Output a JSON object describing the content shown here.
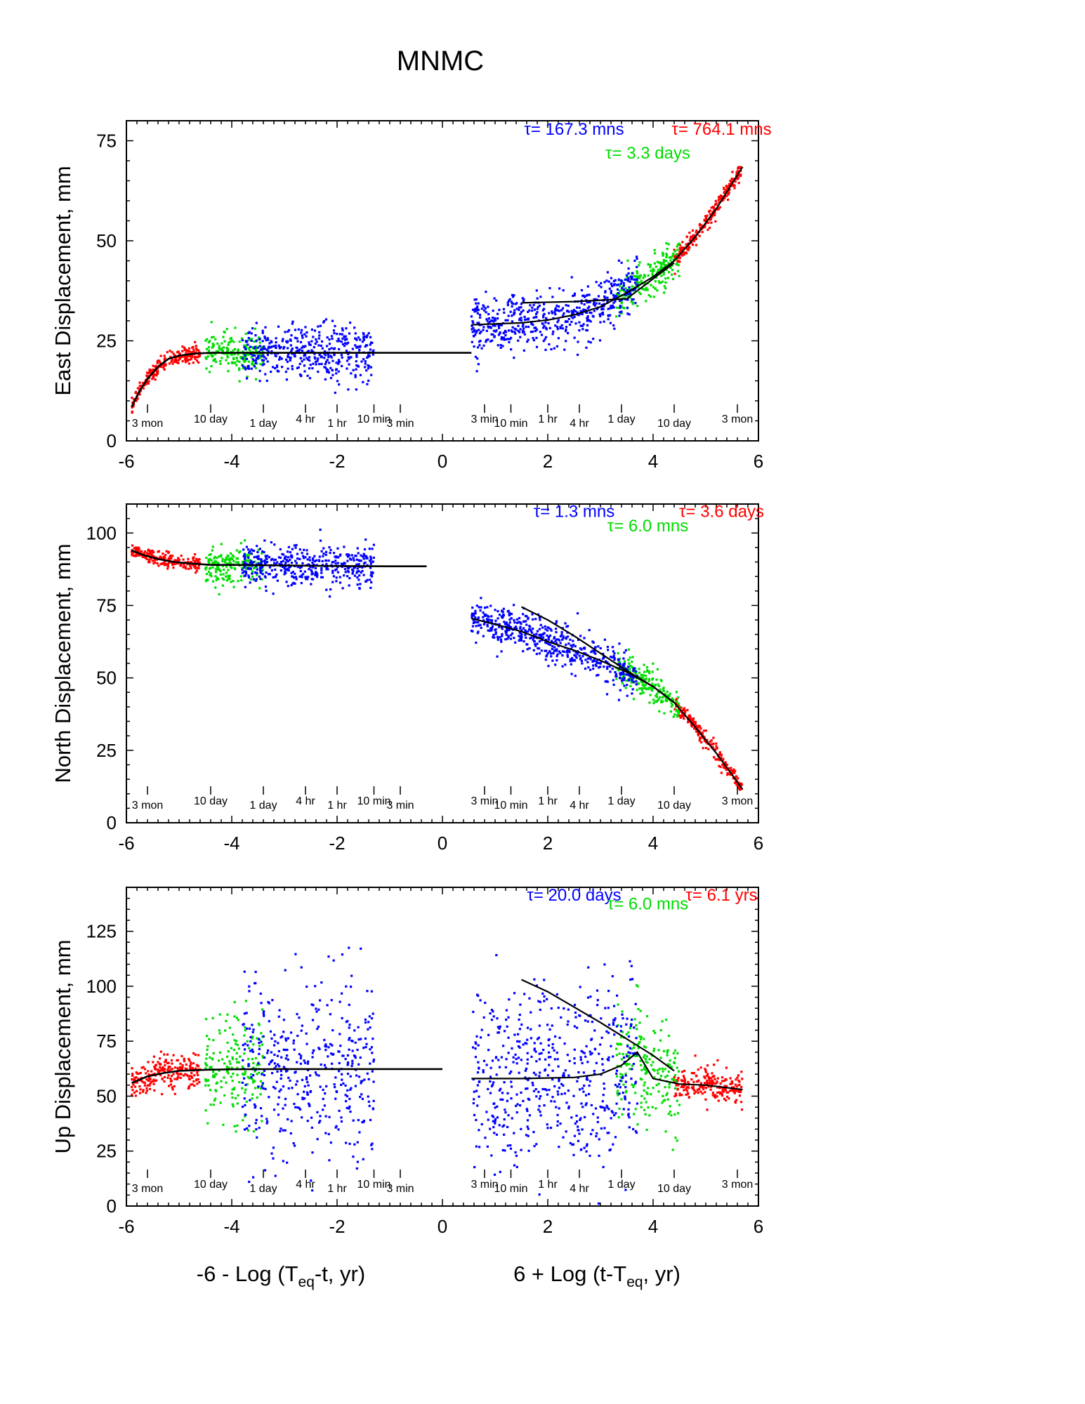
{
  "figure_title": "MNMC",
  "chart_data": [
    {
      "type": "scatter",
      "ylabel": "East Displacement, mm",
      "xlabel": "",
      "xlim": [
        -6,
        6
      ],
      "ylim": [
        0,
        80
      ],
      "x_ticks": [
        -6,
        -4,
        -2,
        0,
        2,
        4,
        6
      ],
      "y_ticks": [
        0,
        25,
        50,
        75
      ],
      "grid": false,
      "time_labels": [
        {
          "x": -5.6,
          "label": "3 mon"
        },
        {
          "x": -4.4,
          "label": "10 day"
        },
        {
          "x": -3.4,
          "label": "1 day"
        },
        {
          "x": -2.6,
          "label": "4 hr"
        },
        {
          "x": -2.0,
          "label": "1 hr"
        },
        {
          "x": -1.3,
          "label": "10 min"
        },
        {
          "x": -0.8,
          "label": "3 min"
        },
        {
          "x": 0.8,
          "label": "3 min"
        },
        {
          "x": 1.3,
          "label": "10 min"
        },
        {
          "x": 2.0,
          "label": "1 hr"
        },
        {
          "x": 2.6,
          "label": "4 hr"
        },
        {
          "x": 3.4,
          "label": "1 day"
        },
        {
          "x": 4.4,
          "label": "10 day"
        },
        {
          "x": 5.6,
          "label": "3 mon"
        }
      ],
      "annotations": [
        {
          "text": "τ= 167.3 mns",
          "color": "#0000ff",
          "x": 2.5,
          "y": 76.5
        },
        {
          "text": "τ= 3.3 days",
          "color": "#00dd00",
          "x": 3.9,
          "y": 70.5
        },
        {
          "text": "τ= 764.1 mns",
          "color": "#ff0000",
          "x": 5.3,
          "y": 76.5
        }
      ],
      "series": [
        {
          "color": "#ff0000",
          "segments": [
            [
              -5.9,
              -4.6
            ],
            [
              4.4,
              5.7
            ]
          ],
          "spread": 1.0
        },
        {
          "color": "#00dd00",
          "segments": [
            [
              -4.5,
              -3.4
            ],
            [
              3.3,
              4.5
            ]
          ],
          "spread": 2.5
        },
        {
          "color": "#0000ff",
          "segments": [
            [
              -3.8,
              -1.3
            ],
            [
              0.55,
              3.7
            ]
          ],
          "spread": 3.5
        }
      ],
      "fit_lines": [
        {
          "x": [
            -5.9,
            -5.75,
            -5.6,
            -5.4,
            -5.2,
            -5.0,
            -4.7,
            -4.4,
            -4.0,
            -3.5,
            -3.0,
            -2.0,
            -1.0,
            0.0,
            0.55
          ],
          "y": [
            8.5,
            12.5,
            15.5,
            18.5,
            20.5,
            21.3,
            21.8,
            22.0,
            22.0,
            22.0,
            22.0,
            22.0,
            22.0,
            22.0,
            22.0
          ],
          "color": "#000000"
        },
        {
          "x": [
            0.55,
            1.5,
            2.0,
            2.5,
            3.0,
            3.5,
            4.0,
            4.4,
            4.8,
            5.2,
            5.7
          ],
          "y": [
            29.0,
            29.5,
            30.2,
            31.5,
            33.5,
            37.0,
            41.0,
            45.0,
            51.0,
            58.0,
            68.5
          ],
          "color": "#000000"
        },
        {
          "x": [
            1.5,
            2.5,
            3.5,
            4.4
          ],
          "y": [
            34.5,
            34.8,
            35.5,
            44.5
          ],
          "color": "#000000"
        }
      ]
    },
    {
      "type": "scatter",
      "ylabel": "North Displacement, mm",
      "xlabel": "",
      "xlim": [
        -6,
        6
      ],
      "ylim": [
        0,
        110
      ],
      "x_ticks": [
        -6,
        -4,
        -2,
        0,
        2,
        4,
        6
      ],
      "y_ticks": [
        0,
        25,
        50,
        75,
        100
      ],
      "grid": false,
      "time_labels": [
        {
          "x": -5.6,
          "label": "3 mon"
        },
        {
          "x": -4.4,
          "label": "10 day"
        },
        {
          "x": -3.4,
          "label": "1 day"
        },
        {
          "x": -2.6,
          "label": "4 hr"
        },
        {
          "x": -2.0,
          "label": "1 hr"
        },
        {
          "x": -1.3,
          "label": "10 min"
        },
        {
          "x": -0.8,
          "label": "3 min"
        },
        {
          "x": 0.8,
          "label": "3 min"
        },
        {
          "x": 1.3,
          "label": "10 min"
        },
        {
          "x": 2.0,
          "label": "1 hr"
        },
        {
          "x": 2.6,
          "label": "4 hr"
        },
        {
          "x": 3.4,
          "label": "1 day"
        },
        {
          "x": 4.4,
          "label": "10 day"
        },
        {
          "x": 5.6,
          "label": "3 mon"
        }
      ],
      "annotations": [
        {
          "text": "τ= 1.3 mns",
          "color": "#0000ff",
          "x": 2.5,
          "y": 105.5
        },
        {
          "text": "τ= 6.0 mns",
          "color": "#00dd00",
          "x": 3.9,
          "y": 100.5
        },
        {
          "text": "τ= 3.6 days",
          "color": "#ff0000",
          "x": 5.3,
          "y": 105.5
        }
      ],
      "series": [
        {
          "color": "#ff0000",
          "segments": [
            [
              -5.9,
              -4.6
            ],
            [
              4.4,
              5.7
            ]
          ],
          "spread": 1.3
        },
        {
          "color": "#00dd00",
          "segments": [
            [
              -4.5,
              -3.4
            ],
            [
              3.3,
              4.5
            ]
          ],
          "spread": 3.0
        },
        {
          "color": "#0000ff",
          "segments": [
            [
              -3.8,
              -1.3
            ],
            [
              0.55,
              3.7
            ]
          ],
          "spread": 3.5
        }
      ],
      "fit_lines": [
        {
          "x": [
            -5.9,
            -5.7,
            -5.4,
            -5.1,
            -4.8,
            -4.4,
            -4.0,
            -3.0,
            -2.0,
            -1.0,
            -0.3
          ],
          "y": [
            94.0,
            92.5,
            91.0,
            90.0,
            89.5,
            89.0,
            89.0,
            88.8,
            88.6,
            88.5,
            88.5
          ],
          "color": "#000000"
        },
        {
          "x": [
            0.55,
            1.0,
            1.5,
            2.0,
            2.5,
            3.0,
            3.5,
            4.0,
            4.4,
            4.8,
            5.2,
            5.7
          ],
          "y": [
            70.5,
            68.5,
            66.0,
            62.5,
            59.5,
            56.0,
            52.0,
            47.0,
            41.5,
            33.0,
            24.0,
            11.5
          ],
          "color": "#000000"
        },
        {
          "x": [
            1.5,
            2.0,
            2.5,
            3.0,
            3.5,
            4.0,
            4.4
          ],
          "y": [
            74.5,
            70.0,
            64.5,
            58.5,
            52.5,
            47.0,
            41.5
          ],
          "color": "#000000"
        }
      ]
    },
    {
      "type": "scatter",
      "ylabel": "Up Displacement, mm",
      "xlabel_left": "-6 - Log (T",
      "xlabel_left_sub": "eq",
      "xlabel_left_tail": "-t, yr)",
      "xlabel_right": "6 + Log (t-T",
      "xlabel_right_sub": "eq",
      "xlabel_right_tail": ", yr)",
      "xlim": [
        -6,
        6
      ],
      "ylim": [
        0,
        145
      ],
      "x_ticks": [
        -6,
        -4,
        -2,
        0,
        2,
        4,
        6
      ],
      "y_ticks": [
        0,
        25,
        50,
        75,
        100,
        125
      ],
      "grid": false,
      "time_labels": [
        {
          "x": -5.6,
          "label": "3 mon"
        },
        {
          "x": -4.4,
          "label": "10 day"
        },
        {
          "x": -3.4,
          "label": "1 day"
        },
        {
          "x": -2.6,
          "label": "4 hr"
        },
        {
          "x": -2.0,
          "label": "1 hr"
        },
        {
          "x": -1.3,
          "label": "10 min"
        },
        {
          "x": -0.8,
          "label": "3 min"
        },
        {
          "x": 0.8,
          "label": "3 min"
        },
        {
          "x": 1.3,
          "label": "10 min"
        },
        {
          "x": 2.0,
          "label": "1 hr"
        },
        {
          "x": 2.6,
          "label": "4 hr"
        },
        {
          "x": 3.4,
          "label": "1 day"
        },
        {
          "x": 4.4,
          "label": "10 day"
        },
        {
          "x": 5.6,
          "label": "3 mon"
        }
      ],
      "annotations": [
        {
          "text": "τ= 20.0 days",
          "color": "#0000ff",
          "x": 2.5,
          "y": 139
        },
        {
          "text": "τ= 6.0 mns",
          "color": "#00dd00",
          "x": 3.9,
          "y": 135
        },
        {
          "text": "τ= 6.1 yrs",
          "color": "#ff0000",
          "x": 5.3,
          "y": 139
        }
      ],
      "series": [
        {
          "color": "#ff0000",
          "segments": [
            [
              -5.9,
              -4.6
            ],
            [
              4.4,
              5.7
            ]
          ],
          "spread": 4.0
        },
        {
          "color": "#00dd00",
          "segments": [
            [
              -4.5,
              -3.4
            ],
            [
              3.3,
              4.5
            ]
          ],
          "spread": 12.0
        },
        {
          "color": "#0000ff",
          "segments": [
            [
              -3.8,
              -1.3
            ],
            [
              0.55,
              3.7
            ]
          ],
          "spread": 20.0
        }
      ],
      "fit_lines": [
        {
          "x": [
            -5.9,
            -5.6,
            -5.3,
            -5.0,
            -4.5,
            -4.0,
            -3.0,
            -2.0,
            -1.0,
            0.0
          ],
          "y": [
            56.0,
            59.0,
            60.5,
            61.5,
            62.0,
            62.2,
            62.3,
            62.3,
            62.3,
            62.3
          ],
          "color": "#000000"
        },
        {
          "x": [
            0.55,
            1.5,
            2.5,
            3.0,
            3.4,
            3.7,
            4.0,
            4.5,
            5.0,
            5.7
          ],
          "y": [
            58.0,
            58.0,
            58.5,
            60.0,
            64.0,
            70.0,
            58.0,
            55.5,
            55.0,
            53.0
          ],
          "color": "#000000"
        },
        {
          "x": [
            1.5,
            2.0,
            2.5,
            3.0,
            3.5,
            4.0,
            4.4
          ],
          "y": [
            103.0,
            97.5,
            90.5,
            83.5,
            76.0,
            68.5,
            61.5
          ],
          "color": "#000000"
        }
      ]
    }
  ]
}
